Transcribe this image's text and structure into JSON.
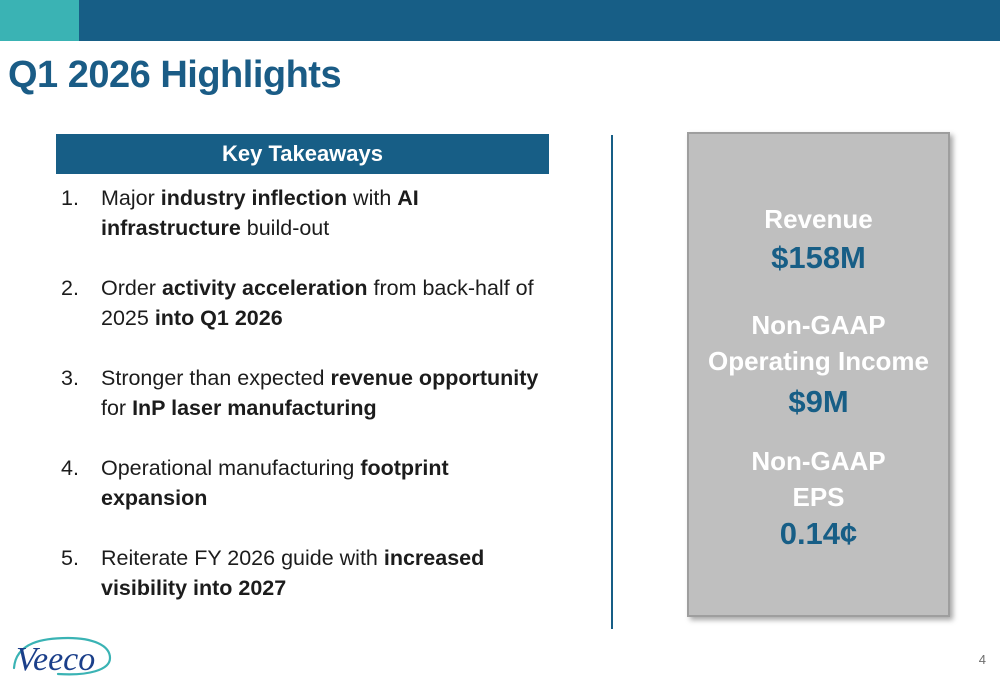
{
  "header": {
    "accent_color": "#3ab3b4",
    "bar_color": "#175e86"
  },
  "title": "Q1 2026 Highlights",
  "takeaways": {
    "heading": "Key Takeaways",
    "items": [
      {
        "number": "1.",
        "parts": [
          {
            "text": "Major ",
            "bold": false
          },
          {
            "text": "industry inflection",
            "bold": true
          },
          {
            "text": " with ",
            "bold": false
          },
          {
            "text": "AI infrastructure",
            "bold": true
          },
          {
            "text": " build-out",
            "bold": false
          }
        ]
      },
      {
        "number": "2.",
        "parts": [
          {
            "text": "Order ",
            "bold": false
          },
          {
            "text": "activity acceleration",
            "bold": true
          },
          {
            "text": " from back-half of 2025 ",
            "bold": false
          },
          {
            "text": "into Q1 2026",
            "bold": true
          }
        ]
      },
      {
        "number": "3.",
        "parts": [
          {
            "text": "Stronger than expected ",
            "bold": false
          },
          {
            "text": "revenue opportunity",
            "bold": true
          },
          {
            "text": " for ",
            "bold": false
          },
          {
            "text": "InP laser manufacturing",
            "bold": true
          }
        ]
      },
      {
        "number": "4.",
        "parts": [
          {
            "text": "Operational manufacturing ",
            "bold": false
          },
          {
            "text": "footprint expansion",
            "bold": true
          }
        ]
      },
      {
        "number": "5.",
        "parts": [
          {
            "text": "Reiterate FY 2026 guide with ",
            "bold": false
          },
          {
            "text": "increased visibility into 2027",
            "bold": true
          }
        ]
      }
    ]
  },
  "metrics": {
    "revenue_label": "Revenue",
    "revenue_value": "$158M",
    "op_income_label_1": "Non-GAAP",
    "op_income_label_2": "Operating Income",
    "op_income_value": "$9M",
    "eps_label_1": "Non-GAAP",
    "eps_label_2": "EPS",
    "eps_value": "0.14¢"
  },
  "logo": {
    "text": "Veeco",
    "icon": "veeco-logo-icon",
    "color": "#1b3f8a",
    "swoosh_color": "#3ab3b4"
  },
  "page_number": "4"
}
